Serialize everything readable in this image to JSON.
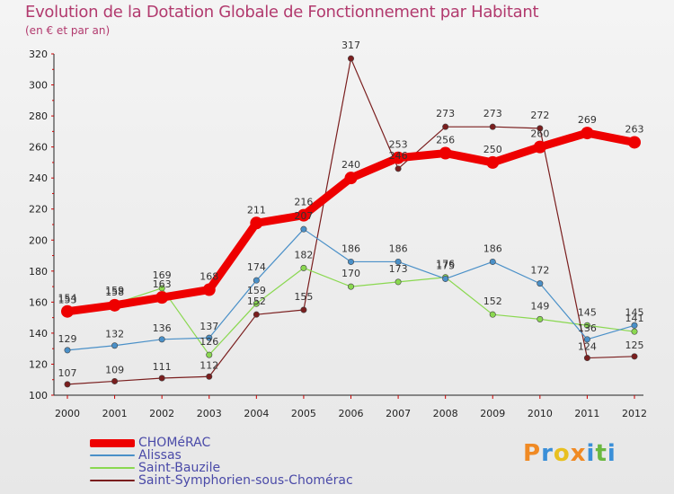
{
  "chart_data": {
    "type": "line",
    "title": "Evolution de la Dotation Globale de Fonctionnement par Habitant",
    "subtitle": "(en € et par an)",
    "xlabel": "",
    "ylabel": "",
    "ylim": [
      100,
      320
    ],
    "y_ticks": [
      "100",
      "120",
      "140",
      "160",
      "180",
      "200",
      "220",
      "240",
      "260",
      "280",
      "300",
      "320"
    ],
    "categories": [
      "2000",
      "2001",
      "2002",
      "2003",
      "2004",
      "2005",
      "2006",
      "2007",
      "2008",
      "2009",
      "2010",
      "2011",
      "2012"
    ],
    "series": [
      {
        "name": "CHOMéRAC",
        "color": "#ee0000",
        "values": [
          154,
          158,
          163,
          168,
          211,
          216,
          240,
          253,
          256,
          250,
          260,
          269,
          263
        ]
      },
      {
        "name": "Alissas",
        "color": "#4a90c8",
        "values": [
          129,
          132,
          136,
          137,
          174,
          207,
          186,
          186,
          175,
          186,
          172,
          136,
          145
        ]
      },
      {
        "name": "Saint-Bauzile",
        "color": "#8ad850",
        "values": [
          153,
          159,
          169,
          126,
          159,
          182,
          170,
          173,
          176,
          152,
          149,
          145,
          141
        ]
      },
      {
        "name": "Saint-Symphorien-sous-Chomérac",
        "color": "#7a1e1e",
        "values": [
          107,
          109,
          111,
          112,
          152,
          155,
          317,
          246,
          273,
          273,
          272,
          124,
          125
        ]
      }
    ],
    "legend_position": "bottom-left",
    "grid": false
  },
  "brand": {
    "letters": [
      "P",
      "r",
      "o",
      "x",
      "i",
      "t",
      "i"
    ],
    "colors": [
      "#f08a24",
      "#3a8fd8",
      "#e8c020",
      "#f08a24",
      "#3a8fd8",
      "#6ab840",
      "#3a8fd8"
    ]
  }
}
